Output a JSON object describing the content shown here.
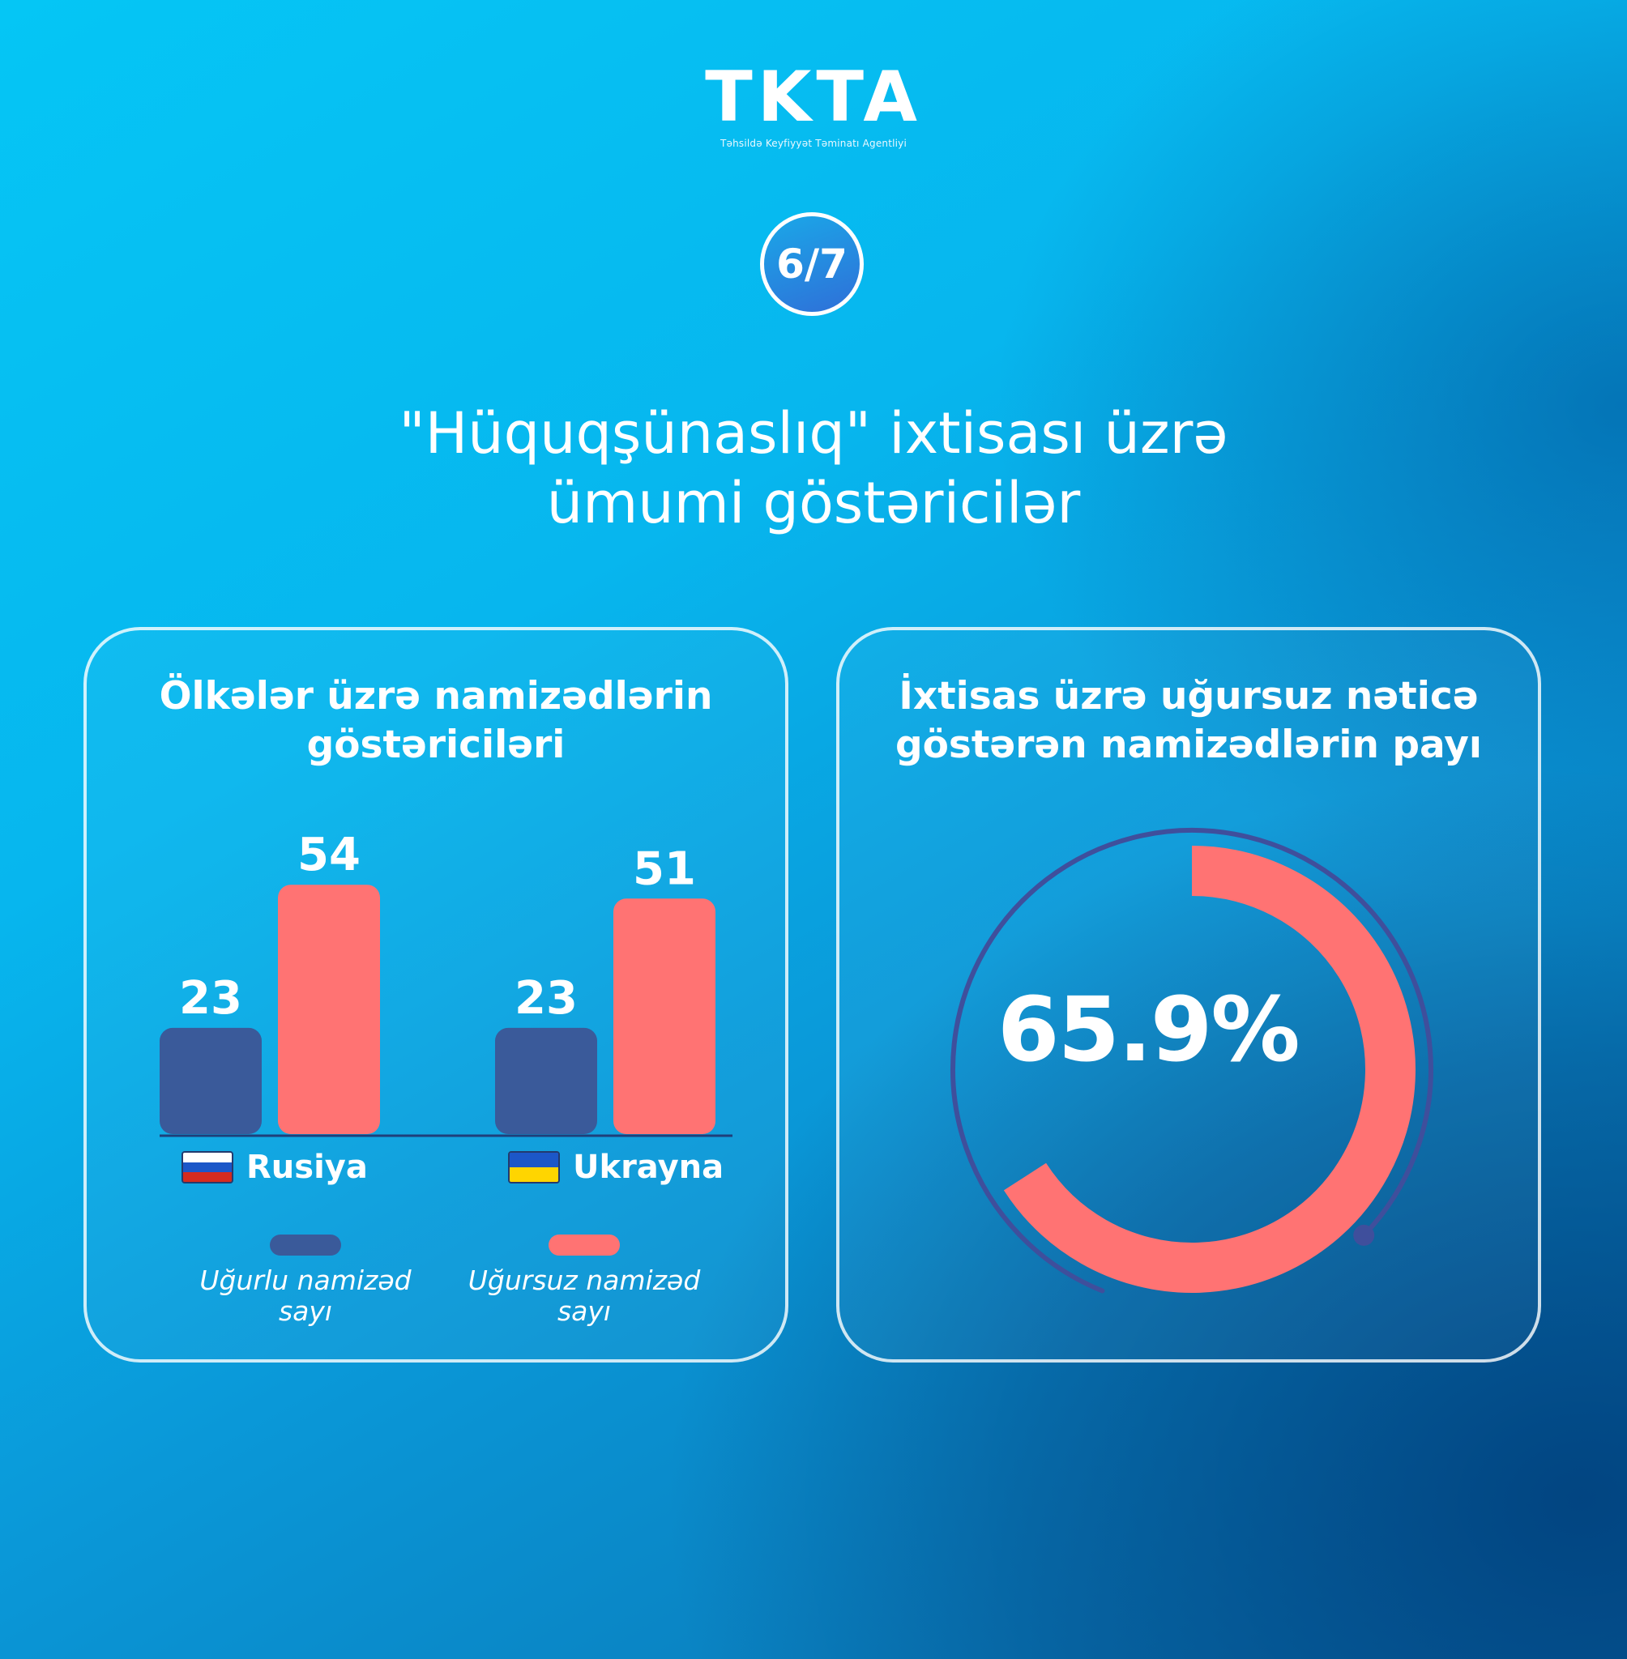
{
  "logo": {
    "title": "TKTA",
    "subtitle": "Təhsildə Keyfiyyət Təminatı Agentliyi"
  },
  "page_indicator": "6/7",
  "main_title": [
    "\"Hüquqşünaslıq\" ixtisası üzrə",
    "ümumi göstəricilər"
  ],
  "colors": {
    "successful": "#3a5a9a",
    "unsuccessful": "#ff7373",
    "ring_track": "#3f4f9c"
  },
  "left_panel": {
    "title": [
      "Ölkələr üzrə namizədlərin",
      "göstəriciləri"
    ],
    "countries": [
      {
        "name": "Rusiya",
        "flag": "russia-flag-icon"
      },
      {
        "name": "Ukrayna",
        "flag": "ukraine-flag-icon"
      }
    ],
    "legend": [
      {
        "label": "Uğurlu namizəd",
        "label2": "sayı"
      },
      {
        "label": "Uğursuz namizəd",
        "label2": "sayı"
      }
    ]
  },
  "right_panel": {
    "title": [
      "İxtisas üzrə uğursuz nəticə",
      "göstərən namizədlərin payı"
    ],
    "value_label": "65.9%"
  },
  "chart_data": [
    {
      "type": "bar",
      "title": "Ölkələr üzrə namizədlərin göstəriciləri",
      "categories": [
        "Rusiya",
        "Ukrayna"
      ],
      "series": [
        {
          "name": "Uğurlu namizəd sayı",
          "values": [
            23,
            23
          ]
        },
        {
          "name": "Uğursuz namizəd sayı",
          "values": [
            54,
            51
          ]
        }
      ],
      "grid": false
    },
    {
      "type": "pie",
      "title": "İxtisas üzrə uğursuz nəticə göstərən namizədlərin payı",
      "values": [
        65.9
      ],
      "labels": [
        "65.9%"
      ]
    }
  ]
}
